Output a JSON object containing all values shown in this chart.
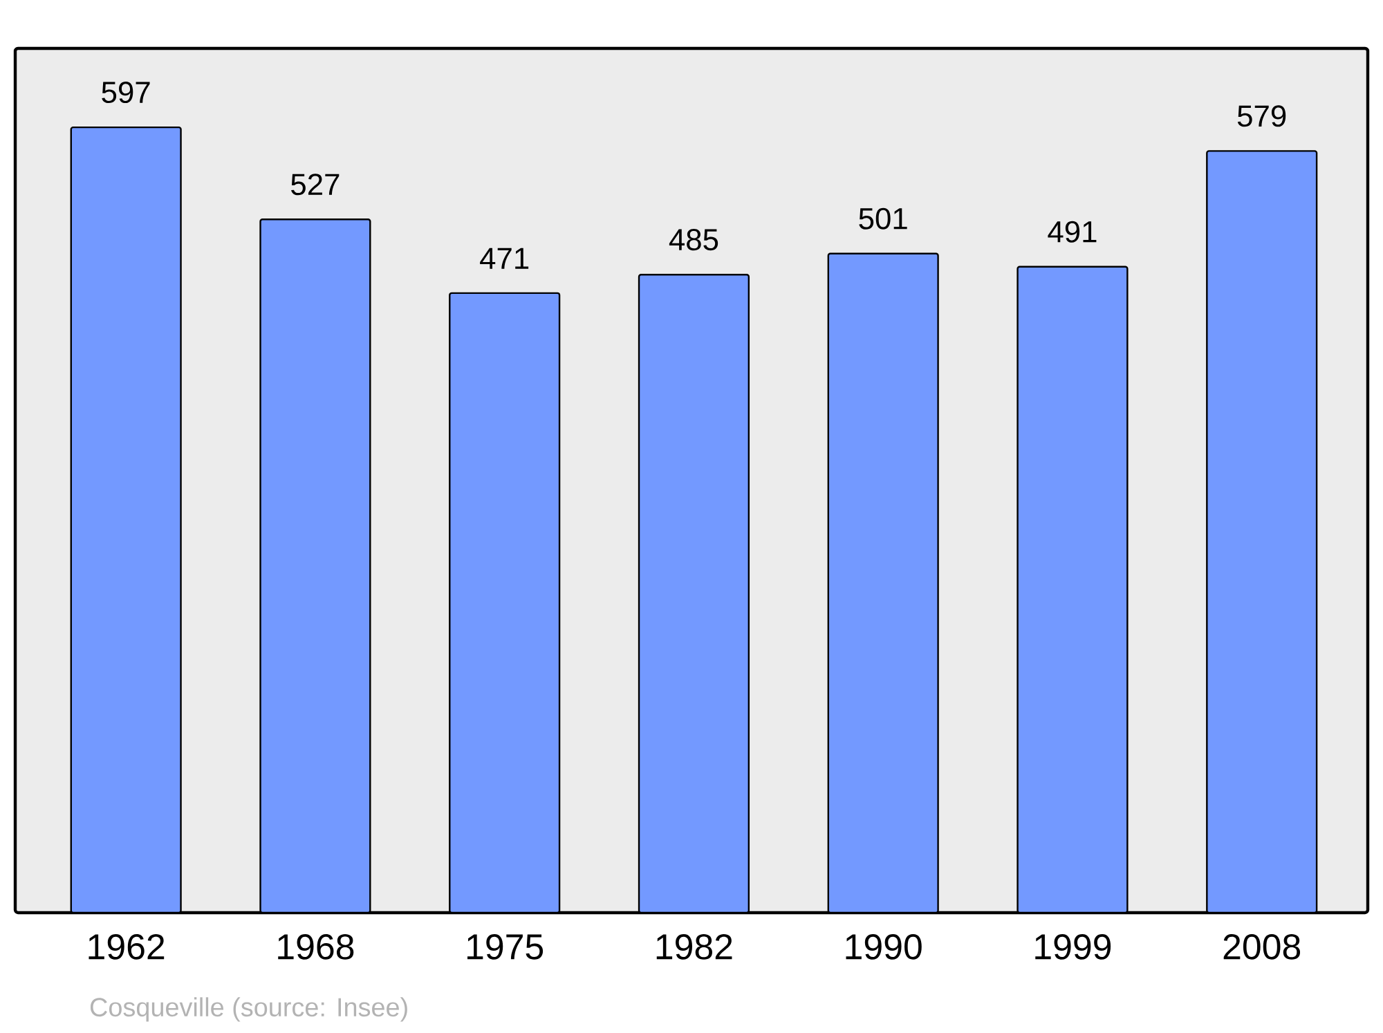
{
  "chart_data": {
    "type": "bar",
    "categories": [
      "1962",
      "1968",
      "1975",
      "1982",
      "1990",
      "1999",
      "2008"
    ],
    "values": [
      597,
      527,
      471,
      485,
      501,
      491,
      579
    ],
    "color": "#7399ff",
    "ylim": [
      0,
      657
    ],
    "tick_labels": "x",
    "data_labels": true,
    "annotations": [
      "Cosqueville    (source: Insee)"
    ]
  }
}
